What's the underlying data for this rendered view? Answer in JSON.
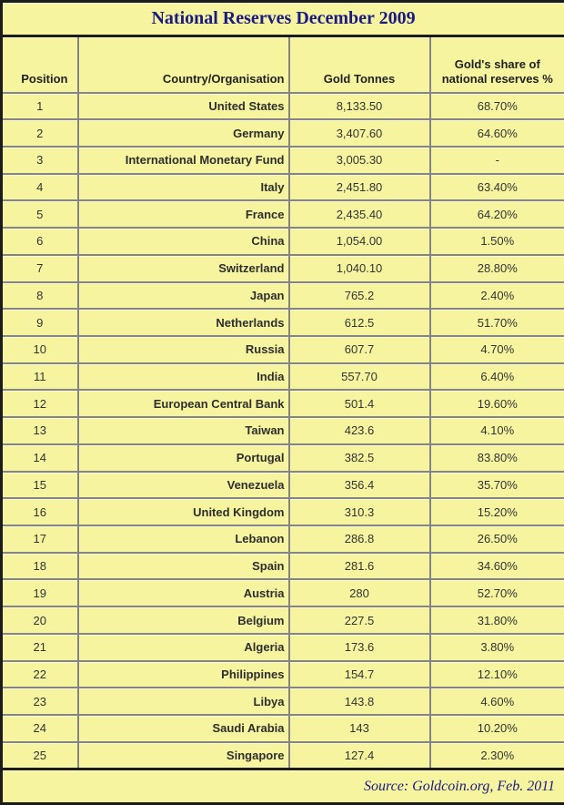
{
  "colors": {
    "background_yellow": "#f7f49f",
    "outer_border": "#1c1c1c",
    "inner_border": "#848484",
    "title_text": "#1a1a82",
    "body_text": "#333333"
  },
  "chart_data": {
    "type": "table",
    "title": "National Reserves December 2009",
    "source_note": "Source: Goldcoin.org, Feb. 2011",
    "columns": [
      "Position",
      "Country/Organisation",
      "Gold Tonnes",
      "Gold's share of national reserves %"
    ],
    "rows": [
      [
        "1",
        "United States",
        "8,133.50",
        "68.70%"
      ],
      [
        "2",
        "Germany",
        "3,407.60",
        "64.60%"
      ],
      [
        "3",
        "International Monetary Fund",
        "3,005.30",
        "-"
      ],
      [
        "4",
        "Italy",
        "2,451.80",
        "63.40%"
      ],
      [
        "5",
        "France",
        "2,435.40",
        "64.20%"
      ],
      [
        "6",
        "China",
        "1,054.00",
        "1.50%"
      ],
      [
        "7",
        "Switzerland",
        "1,040.10",
        "28.80%"
      ],
      [
        "8",
        "Japan",
        "765.2",
        "2.40%"
      ],
      [
        "9",
        "Netherlands",
        "612.5",
        "51.70%"
      ],
      [
        "10",
        "Russia",
        "607.7",
        "4.70%"
      ],
      [
        "11",
        "India",
        "557.70",
        "6.40%"
      ],
      [
        "12",
        "European Central Bank",
        "501.4",
        "19.60%"
      ],
      [
        "13",
        "Taiwan",
        "423.6",
        "4.10%"
      ],
      [
        "14",
        "Portugal",
        "382.5",
        "83.80%"
      ],
      [
        "15",
        "Venezuela",
        "356.4",
        "35.70%"
      ],
      [
        "16",
        "United Kingdom",
        "310.3",
        "15.20%"
      ],
      [
        "17",
        "Lebanon",
        "286.8",
        "26.50%"
      ],
      [
        "18",
        "Spain",
        "281.6",
        "34.60%"
      ],
      [
        "19",
        "Austria",
        "280",
        "52.70%"
      ],
      [
        "20",
        "Belgium",
        "227.5",
        "31.80%"
      ],
      [
        "21",
        "Algeria",
        "173.6",
        "3.80%"
      ],
      [
        "22",
        "Philippines",
        "154.7",
        "12.10%"
      ],
      [
        "23",
        "Libya",
        "143.8",
        "4.60%"
      ],
      [
        "24",
        "Saudi Arabia",
        "143",
        "10.20%"
      ],
      [
        "25",
        "Singapore",
        "127.4",
        "2.30%"
      ]
    ]
  }
}
